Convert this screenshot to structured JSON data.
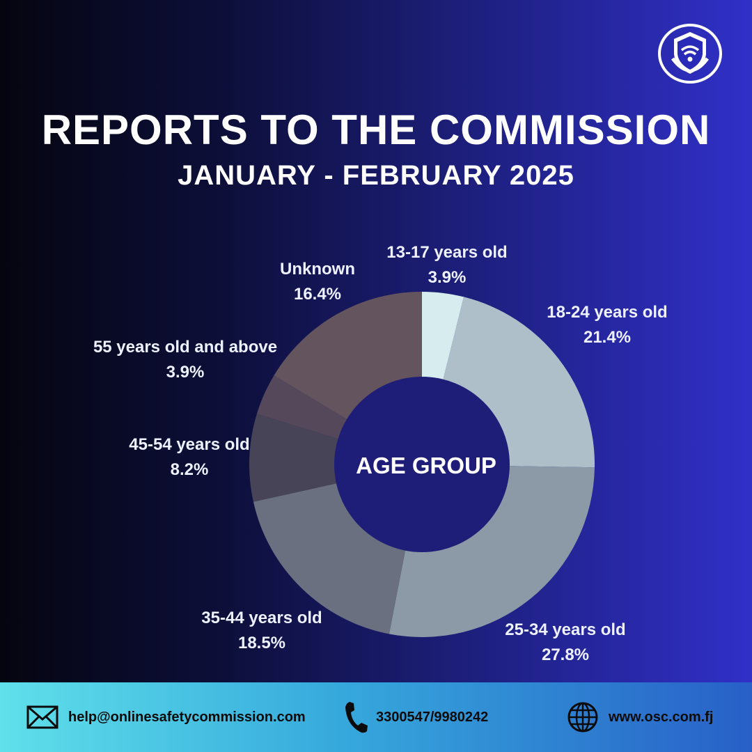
{
  "header": {
    "title": "REPORTS TO THE COMMISSION",
    "subtitle": "JANUARY - FEBRUARY 2025",
    "logo_icon": "shield-wifi-icon"
  },
  "chart_data": {
    "type": "pie",
    "style": "donut",
    "center_label": "AGE GROUP",
    "slices": [
      {
        "label": "13-17 years old",
        "value": 3.9,
        "value_label": "3.9%",
        "color": "#d6ecef"
      },
      {
        "label": "18-24 years old",
        "value": 21.4,
        "value_label": "21.4%",
        "color": "#aebfca"
      },
      {
        "label": "25-34 years old",
        "value": 27.8,
        "value_label": "27.8%",
        "color": "#8b9aa6"
      },
      {
        "label": "35-44 years old",
        "value": 18.5,
        "value_label": "18.5%",
        "color": "#6a7080"
      },
      {
        "label": "45-54 years old",
        "value": 8.2,
        "value_label": "8.2%",
        "color": "#484458"
      },
      {
        "label": "55 years old and above",
        "value": 3.9,
        "value_label": "3.9%",
        "color": "#55485a"
      },
      {
        "label": "Unknown",
        "value": 16.4,
        "value_label": "16.4%",
        "color": "#64545e"
      }
    ],
    "hole_color": "#1e1e78"
  },
  "footer": {
    "email": "help@onlinesafetycommission.com",
    "email_icon": "envelope-icon",
    "phone": "3300547/9980242",
    "phone_icon": "phone-icon",
    "website": "www.osc.com.fj",
    "website_icon": "globe-icon"
  }
}
